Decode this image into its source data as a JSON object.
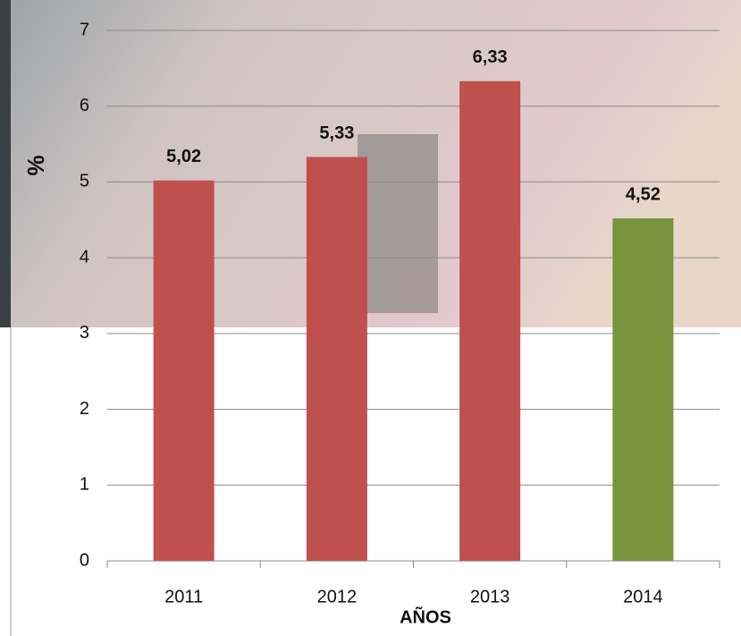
{
  "chart_data": {
    "type": "bar",
    "categories": [
      "2011",
      "2012",
      "2013",
      "2014"
    ],
    "values": [
      5.02,
      5.33,
      6.33,
      4.52
    ],
    "value_labels": [
      "5,02",
      "5,33",
      "6,33",
      "4,52"
    ],
    "colors": [
      "#c0504d",
      "#c0504d",
      "#c0504d",
      "#77933c"
    ],
    "ylim": [
      0,
      7
    ],
    "yticks": [
      0,
      1,
      2,
      3,
      4,
      5,
      6,
      7
    ],
    "y_label": "%",
    "x_label": "AÑOS",
    "grid": true
  }
}
